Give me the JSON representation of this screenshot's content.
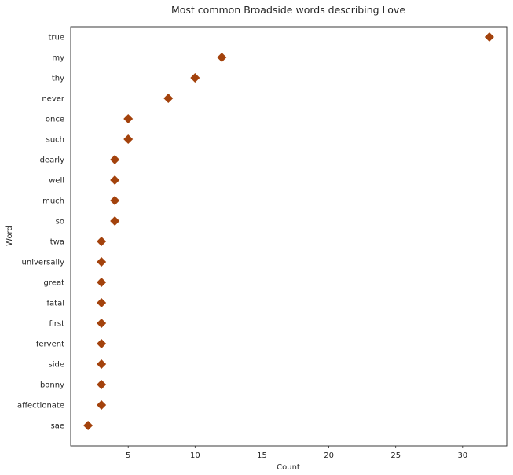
{
  "chart_data": {
    "type": "scatter",
    "title": "Most common Broadside words describing Love",
    "xlabel": "Count",
    "ylabel": "Word",
    "xlim": [
      0.7,
      33.3
    ],
    "xticks": [
      5,
      10,
      15,
      20,
      25,
      30
    ],
    "grid": false,
    "marker": "diamond",
    "marker_color": "#a3420c",
    "categories": [
      "true",
      "my",
      "thy",
      "never",
      "once",
      "such",
      "dearly",
      "well",
      "much",
      "so",
      "twa",
      "universally",
      "great",
      "fatal",
      "first",
      "fervent",
      "side",
      "bonny",
      "affectionate",
      "sae"
    ],
    "values": [
      32,
      12,
      10,
      8,
      5,
      5,
      4,
      4,
      4,
      4,
      3,
      3,
      3,
      3,
      3,
      3,
      3,
      3,
      3,
      2
    ]
  }
}
